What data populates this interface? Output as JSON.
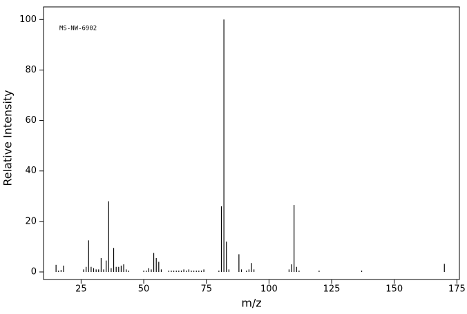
{
  "chart_data": {
    "type": "stem",
    "annotation": "MS-NW-6902",
    "xlabel": "m/z",
    "ylabel": "Relative Intensity",
    "color": "#000000",
    "x": [
      15,
      16,
      17,
      18,
      26,
      27,
      28,
      29,
      30,
      31,
      32,
      33,
      34,
      35,
      36,
      37,
      38,
      39,
      40,
      41,
      42,
      43,
      44,
      50,
      51,
      52,
      53,
      54,
      55,
      56,
      57,
      60,
      61,
      62,
      63,
      64,
      65,
      66,
      67,
      68,
      69,
      70,
      71,
      72,
      73,
      74,
      80,
      81,
      82,
      83,
      84,
      88,
      89,
      91,
      92,
      93,
      94,
      108,
      109,
      110,
      111,
      112,
      120,
      137,
      170
    ],
    "values": [
      2.8,
      0.5,
      0.8,
      2.5,
      1.0,
      2.0,
      12.5,
      2.0,
      1.5,
      1.0,
      1.0,
      5.5,
      1.0,
      4.5,
      28,
      1.5,
      9.5,
      2.0,
      2.0,
      2.5,
      3.0,
      1.0,
      0.5,
      0.5,
      0.5,
      1.5,
      1.0,
      7.5,
      5.5,
      4.0,
      1.0,
      0.5,
      0.5,
      0.5,
      0.5,
      0.5,
      0.5,
      1.0,
      0.5,
      1.0,
      0.5,
      0.5,
      0.5,
      0.5,
      0.5,
      1.0,
      0.5,
      26,
      100,
      12,
      1.0,
      7.0,
      1.0,
      0.5,
      1.0,
      3.5,
      1.0,
      1.0,
      3.0,
      26.5,
      2.0,
      0.5,
      0.5,
      0.5,
      3.2
    ],
    "xlim": [
      10,
      176
    ],
    "ylim": [
      -3,
      105
    ],
    "xticks": [
      25,
      50,
      75,
      100,
      125,
      150,
      175
    ],
    "yticks": [
      0,
      20,
      40,
      60,
      80,
      100
    ]
  }
}
